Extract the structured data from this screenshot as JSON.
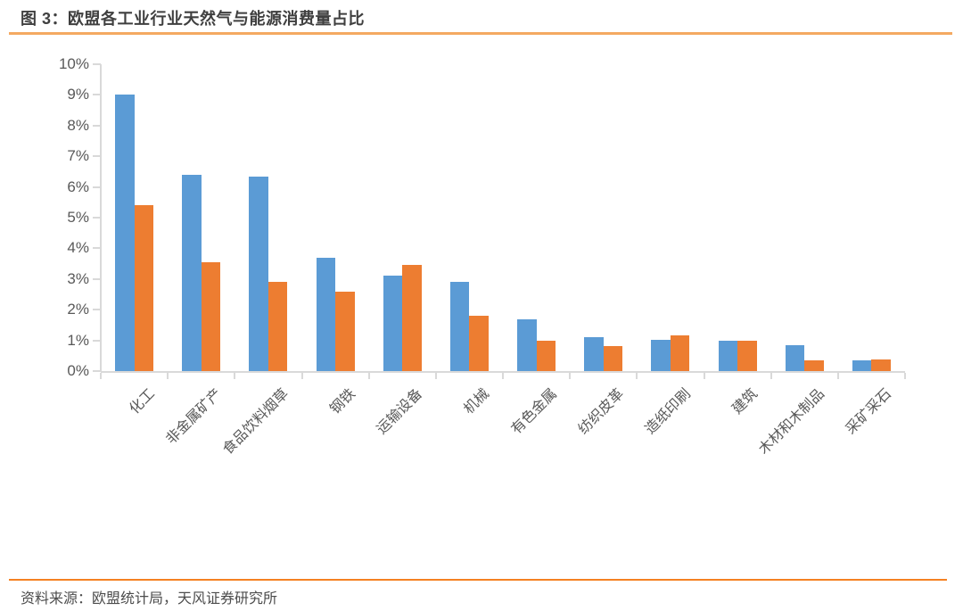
{
  "header": {
    "title": "图 3：欧盟各工业行业天然气与能源消费量占比"
  },
  "footer": {
    "source": "资料来源：欧盟统计局，天风证券研究所"
  },
  "colors": {
    "series_blue": "#5b9bd5",
    "series_orange": "#ed7d31",
    "title_text": "#3f3f3f",
    "title_rule": "#f4a961",
    "footer_rule": "#f58122",
    "axis_line": "#d9d9d9",
    "axis_text": "#595959"
  },
  "chart_data": {
    "type": "bar",
    "title": "图 3：欧盟各工业行业天然气与能源消费量占比",
    "categories": [
      "化工",
      "非金属矿产",
      "食品饮料烟草",
      "钢铁",
      "运输设备",
      "机械",
      "有色金属",
      "纺织皮革",
      "造纸印刷",
      "建筑",
      "木材和木制品",
      "采矿采石"
    ],
    "series": [
      {
        "name": "blue",
        "color_key": "series_blue",
        "values": [
          9.0,
          6.4,
          6.35,
          3.7,
          3.1,
          2.9,
          1.7,
          1.1,
          1.03,
          1.0,
          0.85,
          0.35
        ]
      },
      {
        "name": "orange",
        "color_key": "series_orange",
        "values": [
          5.4,
          3.55,
          2.9,
          2.6,
          3.45,
          1.8,
          1.0,
          0.8,
          1.15,
          1.0,
          0.35,
          0.38
        ]
      }
    ],
    "xlabel": "",
    "ylabel": "",
    "ylim": [
      0,
      10
    ],
    "ytick_step": 1,
    "ytick_suffix": "%",
    "ytick_labels": [
      "0%",
      "1%",
      "2%",
      "3%",
      "4%",
      "5%",
      "6%",
      "7%",
      "8%",
      "9%",
      "10%"
    ],
    "legend_visible": false,
    "grid": false,
    "bar_orientation": "vertical",
    "x_label_rotation_deg": -45
  }
}
